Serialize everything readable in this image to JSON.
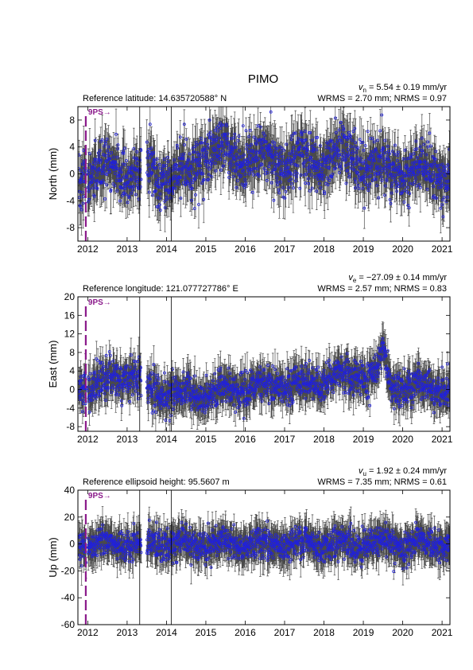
{
  "colors": {
    "error_bar": "#4a4a4a",
    "point": "#2020dd",
    "event": "#8b1a8b",
    "frame": "#000000"
  },
  "chart_data": {
    "type": "scatter",
    "title": "PIMO",
    "xlim": [
      2011.75,
      2021.2
    ],
    "x_ticks": [
      2012,
      2013,
      2014,
      2015,
      2016,
      2017,
      2018,
      2019,
      2020,
      2021
    ],
    "event": {
      "label": "9PS",
      "arrow": "→",
      "x": 2011.95
    },
    "vertical_markers": [
      2013.32,
      2014.12
    ],
    "panels": [
      {
        "name": "north",
        "ylabel": "North (mm)",
        "reference": "Reference latitude: 14.635720588° N",
        "velocity": {
          "symbol": "v",
          "sub": "n",
          "text": " = 5.54 ± 0.19 mm/yr"
        },
        "stats": "WRMS = 2.70 mm; NRMS = 0.97",
        "ylim": [
          -10,
          10
        ],
        "y_ticks": [
          -8,
          -4,
          0,
          4,
          8
        ],
        "seasonal_amp": 1.2,
        "trend_anchors": [
          [
            2011.8,
            0
          ],
          [
            2013.5,
            0.5
          ],
          [
            2014.5,
            -0.5
          ],
          [
            2015.0,
            3.5
          ],
          [
            2016.5,
            2.5
          ],
          [
            2017.5,
            1.5
          ],
          [
            2018.5,
            3
          ],
          [
            2019.5,
            1
          ],
          [
            2020.5,
            0.5
          ],
          [
            2021.2,
            0
          ]
        ],
        "sigma_scatter": 2.7,
        "sigma_error": 2.6
      },
      {
        "name": "east",
        "ylabel": "East (mm)",
        "reference": "Reference longitude: 121.077727786° E",
        "velocity": {
          "symbol": "v",
          "sub": "e",
          "text": " = −27.09 ± 0.14 mm/yr"
        },
        "stats": "WRMS = 2.57 mm; NRMS = 0.83",
        "ylim": [
          -9,
          20
        ],
        "y_ticks": [
          -8,
          -4,
          0,
          4,
          8,
          12,
          16,
          20
        ],
        "seasonal_amp": 1.0,
        "trend_anchors": [
          [
            2011.8,
            0
          ],
          [
            2013.0,
            3
          ],
          [
            2013.5,
            1
          ],
          [
            2014.3,
            -1
          ],
          [
            2015.0,
            -1
          ],
          [
            2016.5,
            1
          ],
          [
            2017.5,
            1
          ],
          [
            2018.5,
            3
          ],
          [
            2019.3,
            3
          ],
          [
            2019.5,
            8
          ],
          [
            2019.7,
            0.5
          ],
          [
            2020.5,
            1
          ],
          [
            2021.2,
            0
          ]
        ],
        "sigma_scatter": 2.6,
        "sigma_error": 3.0
      },
      {
        "name": "up",
        "ylabel": "Up (mm)",
        "reference": "Reference ellipsoid height: 95.5607 m",
        "velocity": {
          "symbol": "v",
          "sub": "u",
          "text": " = 1.92 ± 0.24 mm/yr"
        },
        "stats": "WRMS = 7.35 mm; NRMS = 0.61",
        "ylim": [
          -60,
          40
        ],
        "y_ticks": [
          -60,
          -40,
          -20,
          0,
          20,
          40
        ],
        "seasonal_amp": 3.0,
        "trend_anchors": [
          [
            2011.8,
            0
          ],
          [
            2021.2,
            0
          ]
        ],
        "sigma_scatter": 7.4,
        "sigma_error": 10
      }
    ]
  }
}
